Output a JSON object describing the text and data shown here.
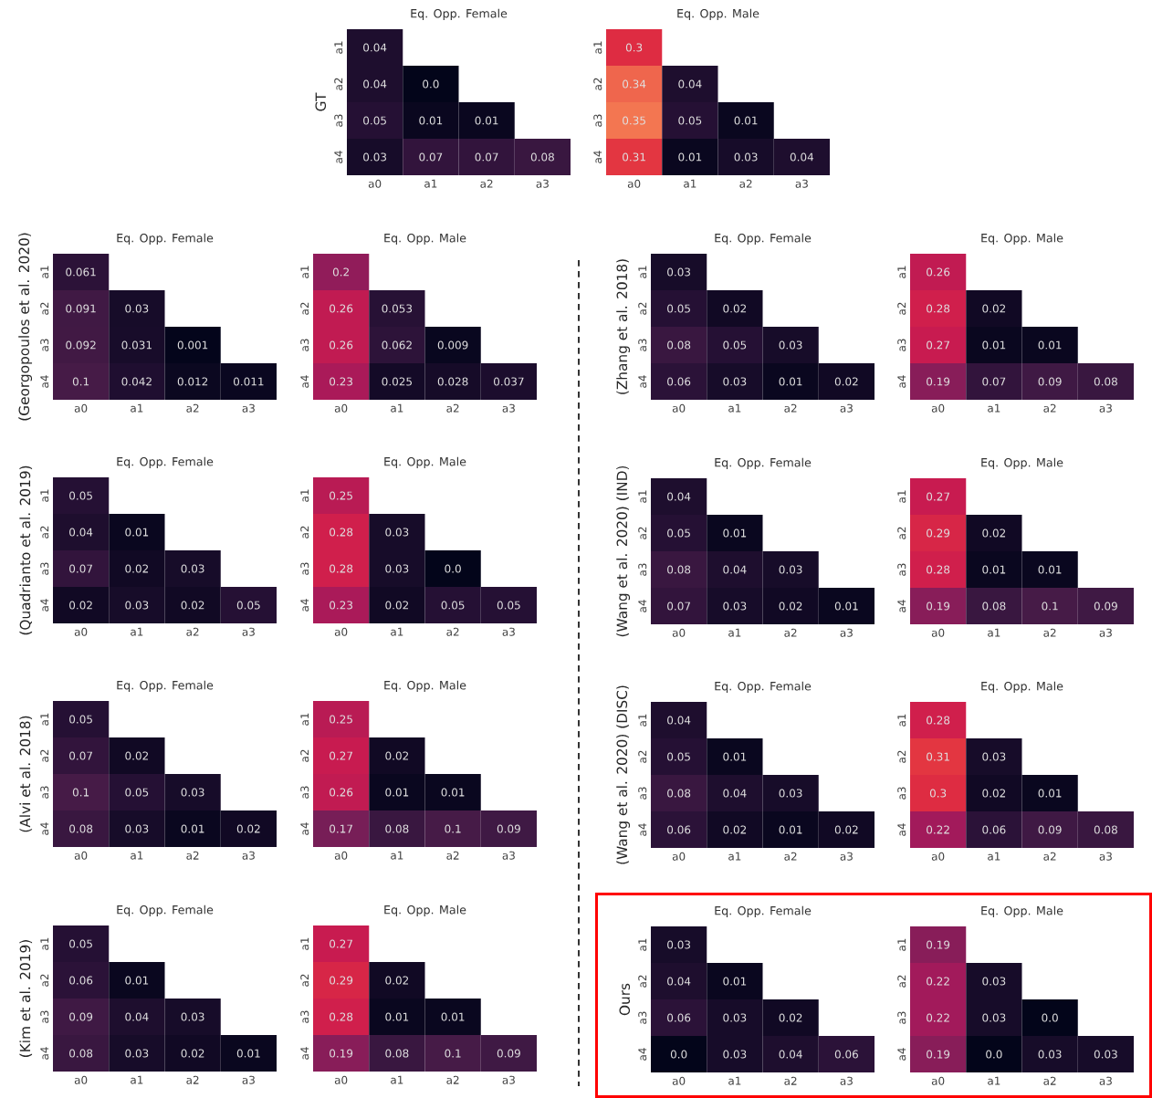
{
  "chart_data": [
    {
      "type": "heatmap",
      "title": "Eq. Opp. Female",
      "ylabel": "GT",
      "categories": [
        "a0",
        "a1",
        "a2",
        "a3"
      ],
      "y_categories": [
        "a1",
        "a2",
        "a3",
        "a4"
      ],
      "cells": [
        [
          0.04,
          null,
          null,
          null
        ],
        [
          0.04,
          0.0,
          null,
          null
        ],
        [
          0.05,
          0.01,
          0.01,
          null
        ],
        [
          0.03,
          0.07,
          0.07,
          0.08
        ]
      ],
      "cell_labels": [
        [
          "0.04",
          null,
          null,
          null
        ],
        [
          "0.04",
          "0.0",
          null,
          null
        ],
        [
          "0.05",
          "0.01",
          "0.01",
          null
        ],
        [
          "0.03",
          "0.07",
          "0.07",
          "0.08"
        ]
      ]
    },
    {
      "type": "heatmap",
      "title": "Eq. Opp. Male",
      "categories": [
        "a0",
        "a1",
        "a2",
        "a3"
      ],
      "y_categories": [
        "a1",
        "a2",
        "a3",
        "a4"
      ],
      "cells": [
        [
          0.3,
          null,
          null,
          null
        ],
        [
          0.34,
          0.04,
          null,
          null
        ],
        [
          0.35,
          0.05,
          0.01,
          null
        ],
        [
          0.31,
          0.01,
          0.03,
          0.04
        ]
      ],
      "cell_labels": [
        [
          "0.3",
          null,
          null,
          null
        ],
        [
          "0.34",
          "0.04",
          null,
          null
        ],
        [
          "0.35",
          "0.05",
          "0.01",
          null
        ],
        [
          "0.31",
          "0.01",
          "0.03",
          "0.04"
        ]
      ]
    },
    {
      "type": "heatmap",
      "title": "Eq. Opp. Female",
      "ylabel": "(Georgopoulos et al. 2020)",
      "categories": [
        "a0",
        "a1",
        "a2",
        "a3"
      ],
      "y_categories": [
        "a1",
        "a2",
        "a3",
        "a4"
      ],
      "cells": [
        [
          0.061,
          null,
          null,
          null
        ],
        [
          0.091,
          0.03,
          null,
          null
        ],
        [
          0.092,
          0.031,
          0.001,
          null
        ],
        [
          0.1,
          0.042,
          0.012,
          0.011
        ]
      ],
      "cell_labels": [
        [
          "0.061",
          null,
          null,
          null
        ],
        [
          "0.091",
          "0.03",
          null,
          null
        ],
        [
          "0.092",
          "0.031",
          "0.001",
          null
        ],
        [
          "0.1",
          "0.042",
          "0.012",
          "0.011"
        ]
      ]
    },
    {
      "type": "heatmap",
      "title": "Eq. Opp. Male",
      "categories": [
        "a0",
        "a1",
        "a2",
        "a3"
      ],
      "y_categories": [
        "a1",
        "a2",
        "a3",
        "a4"
      ],
      "cells": [
        [
          0.2,
          null,
          null,
          null
        ],
        [
          0.26,
          0.053,
          null,
          null
        ],
        [
          0.26,
          0.062,
          0.009,
          null
        ],
        [
          0.23,
          0.025,
          0.028,
          0.037
        ]
      ],
      "cell_labels": [
        [
          "0.2",
          null,
          null,
          null
        ],
        [
          "0.26",
          "0.053",
          null,
          null
        ],
        [
          "0.26",
          "0.062",
          "0.009",
          null
        ],
        [
          "0.23",
          "0.025",
          "0.028",
          "0.037"
        ]
      ]
    },
    {
      "type": "heatmap",
      "title": "Eq. Opp. Female",
      "ylabel": "(Zhang et al. 2018)",
      "categories": [
        "a0",
        "a1",
        "a2",
        "a3"
      ],
      "y_categories": [
        "a1",
        "a2",
        "a3",
        "a4"
      ],
      "cells": [
        [
          0.03,
          null,
          null,
          null
        ],
        [
          0.05,
          0.02,
          null,
          null
        ],
        [
          0.08,
          0.05,
          0.03,
          null
        ],
        [
          0.06,
          0.03,
          0.01,
          0.02
        ]
      ],
      "cell_labels": [
        [
          "0.03",
          null,
          null,
          null
        ],
        [
          "0.05",
          "0.02",
          null,
          null
        ],
        [
          "0.08",
          "0.05",
          "0.03",
          null
        ],
        [
          "0.06",
          "0.03",
          "0.01",
          "0.02"
        ]
      ]
    },
    {
      "type": "heatmap",
      "title": "Eq. Opp. Male",
      "categories": [
        "a0",
        "a1",
        "a2",
        "a3"
      ],
      "y_categories": [
        "a1",
        "a2",
        "a3",
        "a4"
      ],
      "cells": [
        [
          0.26,
          null,
          null,
          null
        ],
        [
          0.28,
          0.02,
          null,
          null
        ],
        [
          0.27,
          0.01,
          0.01,
          null
        ],
        [
          0.19,
          0.07,
          0.09,
          0.08
        ]
      ],
      "cell_labels": [
        [
          "0.26",
          null,
          null,
          null
        ],
        [
          "0.28",
          "0.02",
          null,
          null
        ],
        [
          "0.27",
          "0.01",
          "0.01",
          null
        ],
        [
          "0.19",
          "0.07",
          "0.09",
          "0.08"
        ]
      ]
    },
    {
      "type": "heatmap",
      "title": "Eq. Opp. Female",
      "ylabel": "(Quadrianto et al. 2019)",
      "categories": [
        "a0",
        "a1",
        "a2",
        "a3"
      ],
      "y_categories": [
        "a1",
        "a2",
        "a3",
        "a4"
      ],
      "cells": [
        [
          0.05,
          null,
          null,
          null
        ],
        [
          0.04,
          0.01,
          null,
          null
        ],
        [
          0.07,
          0.02,
          0.03,
          null
        ],
        [
          0.02,
          0.03,
          0.02,
          0.05
        ]
      ],
      "cell_labels": [
        [
          "0.05",
          null,
          null,
          null
        ],
        [
          "0.04",
          "0.01",
          null,
          null
        ],
        [
          "0.07",
          "0.02",
          "0.03",
          null
        ],
        [
          "0.02",
          "0.03",
          "0.02",
          "0.05"
        ]
      ]
    },
    {
      "type": "heatmap",
      "title": "Eq. Opp. Male",
      "categories": [
        "a0",
        "a1",
        "a2",
        "a3"
      ],
      "y_categories": [
        "a1",
        "a2",
        "a3",
        "a4"
      ],
      "cells": [
        [
          0.25,
          null,
          null,
          null
        ],
        [
          0.28,
          0.03,
          null,
          null
        ],
        [
          0.28,
          0.03,
          0.0,
          null
        ],
        [
          0.23,
          0.02,
          0.05,
          0.05
        ]
      ],
      "cell_labels": [
        [
          "0.25",
          null,
          null,
          null
        ],
        [
          "0.28",
          "0.03",
          null,
          null
        ],
        [
          "0.28",
          "0.03",
          "0.0",
          null
        ],
        [
          "0.23",
          "0.02",
          "0.05",
          "0.05"
        ]
      ]
    },
    {
      "type": "heatmap",
      "title": "Eq. Opp. Female",
      "ylabel": "(Wang et al. 2020) (IND)",
      "categories": [
        "a0",
        "a1",
        "a2",
        "a3"
      ],
      "y_categories": [
        "a1",
        "a2",
        "a3",
        "a4"
      ],
      "cells": [
        [
          0.04,
          null,
          null,
          null
        ],
        [
          0.05,
          0.01,
          null,
          null
        ],
        [
          0.08,
          0.04,
          0.03,
          null
        ],
        [
          0.07,
          0.03,
          0.02,
          0.01
        ]
      ],
      "cell_labels": [
        [
          "0.04",
          null,
          null,
          null
        ],
        [
          "0.05",
          "0.01",
          null,
          null
        ],
        [
          "0.08",
          "0.04",
          "0.03",
          null
        ],
        [
          "0.07",
          "0.03",
          "0.02",
          "0.01"
        ]
      ]
    },
    {
      "type": "heatmap",
      "title": "Eq. Opp. Male",
      "categories": [
        "a0",
        "a1",
        "a2",
        "a3"
      ],
      "y_categories": [
        "a1",
        "a2",
        "a3",
        "a4"
      ],
      "cells": [
        [
          0.27,
          null,
          null,
          null
        ],
        [
          0.29,
          0.02,
          null,
          null
        ],
        [
          0.28,
          0.01,
          0.01,
          null
        ],
        [
          0.19,
          0.08,
          0.1,
          0.09
        ]
      ],
      "cell_labels": [
        [
          "0.27",
          null,
          null,
          null
        ],
        [
          "0.29",
          "0.02",
          null,
          null
        ],
        [
          "0.28",
          "0.01",
          "0.01",
          null
        ],
        [
          "0.19",
          "0.08",
          "0.1",
          "0.09"
        ]
      ]
    },
    {
      "type": "heatmap",
      "title": "Eq. Opp. Female",
      "ylabel": "(Alvi et al. 2018)",
      "categories": [
        "a0",
        "a1",
        "a2",
        "a3"
      ],
      "y_categories": [
        "a1",
        "a2",
        "a3",
        "a4"
      ],
      "cells": [
        [
          0.05,
          null,
          null,
          null
        ],
        [
          0.07,
          0.02,
          null,
          null
        ],
        [
          0.1,
          0.05,
          0.03,
          null
        ],
        [
          0.08,
          0.03,
          0.01,
          0.02
        ]
      ],
      "cell_labels": [
        [
          "0.05",
          null,
          null,
          null
        ],
        [
          "0.07",
          "0.02",
          null,
          null
        ],
        [
          "0.1",
          "0.05",
          "0.03",
          null
        ],
        [
          "0.08",
          "0.03",
          "0.01",
          "0.02"
        ]
      ]
    },
    {
      "type": "heatmap",
      "title": "Eq. Opp. Male",
      "categories": [
        "a0",
        "a1",
        "a2",
        "a3"
      ],
      "y_categories": [
        "a1",
        "a2",
        "a3",
        "a4"
      ],
      "cells": [
        [
          0.25,
          null,
          null,
          null
        ],
        [
          0.27,
          0.02,
          null,
          null
        ],
        [
          0.26,
          0.01,
          0.01,
          null
        ],
        [
          0.17,
          0.08,
          0.1,
          0.09
        ]
      ],
      "cell_labels": [
        [
          "0.25",
          null,
          null,
          null
        ],
        [
          "0.27",
          "0.02",
          null,
          null
        ],
        [
          "0.26",
          "0.01",
          "0.01",
          null
        ],
        [
          "0.17",
          "0.08",
          "0.1",
          "0.09"
        ]
      ]
    },
    {
      "type": "heatmap",
      "title": "Eq. Opp. Female",
      "ylabel": "(Wang et al. 2020) (DISC)",
      "categories": [
        "a0",
        "a1",
        "a2",
        "a3"
      ],
      "y_categories": [
        "a1",
        "a2",
        "a3",
        "a4"
      ],
      "cells": [
        [
          0.04,
          null,
          null,
          null
        ],
        [
          0.05,
          0.01,
          null,
          null
        ],
        [
          0.08,
          0.04,
          0.03,
          null
        ],
        [
          0.06,
          0.02,
          0.01,
          0.02
        ]
      ],
      "cell_labels": [
        [
          "0.04",
          null,
          null,
          null
        ],
        [
          "0.05",
          "0.01",
          null,
          null
        ],
        [
          "0.08",
          "0.04",
          "0.03",
          null
        ],
        [
          "0.06",
          "0.02",
          "0.01",
          "0.02"
        ]
      ]
    },
    {
      "type": "heatmap",
      "title": "Eq. Opp. Male",
      "categories": [
        "a0",
        "a1",
        "a2",
        "a3"
      ],
      "y_categories": [
        "a1",
        "a2",
        "a3",
        "a4"
      ],
      "cells": [
        [
          0.28,
          null,
          null,
          null
        ],
        [
          0.31,
          0.03,
          null,
          null
        ],
        [
          0.3,
          0.02,
          0.01,
          null
        ],
        [
          0.22,
          0.06,
          0.09,
          0.08
        ]
      ],
      "cell_labels": [
        [
          "0.28",
          null,
          null,
          null
        ],
        [
          "0.31",
          "0.03",
          null,
          null
        ],
        [
          "0.3",
          "0.02",
          "0.01",
          null
        ],
        [
          "0.22",
          "0.06",
          "0.09",
          "0.08"
        ]
      ]
    },
    {
      "type": "heatmap",
      "title": "Eq. Opp. Female",
      "ylabel": "(Kim et al. 2019)",
      "categories": [
        "a0",
        "a1",
        "a2",
        "a3"
      ],
      "y_categories": [
        "a1",
        "a2",
        "a3",
        "a4"
      ],
      "cells": [
        [
          0.05,
          null,
          null,
          null
        ],
        [
          0.06,
          0.01,
          null,
          null
        ],
        [
          0.09,
          0.04,
          0.03,
          null
        ],
        [
          0.08,
          0.03,
          0.02,
          0.01
        ]
      ],
      "cell_labels": [
        [
          "0.05",
          null,
          null,
          null
        ],
        [
          "0.06",
          "0.01",
          null,
          null
        ],
        [
          "0.09",
          "0.04",
          "0.03",
          null
        ],
        [
          "0.08",
          "0.03",
          "0.02",
          "0.01"
        ]
      ]
    },
    {
      "type": "heatmap",
      "title": "Eq. Opp. Male",
      "categories": [
        "a0",
        "a1",
        "a2",
        "a3"
      ],
      "y_categories": [
        "a1",
        "a2",
        "a3",
        "a4"
      ],
      "cells": [
        [
          0.27,
          null,
          null,
          null
        ],
        [
          0.29,
          0.02,
          null,
          null
        ],
        [
          0.28,
          0.01,
          0.01,
          null
        ],
        [
          0.19,
          0.08,
          0.1,
          0.09
        ]
      ],
      "cell_labels": [
        [
          "0.27",
          null,
          null,
          null
        ],
        [
          "0.29",
          "0.02",
          null,
          null
        ],
        [
          "0.28",
          "0.01",
          "0.01",
          null
        ],
        [
          "0.19",
          "0.08",
          "0.1",
          "0.09"
        ]
      ]
    },
    {
      "type": "heatmap",
      "title": "Eq. Opp. Female",
      "ylabel": "Ours",
      "categories": [
        "a0",
        "a1",
        "a2",
        "a3"
      ],
      "y_categories": [
        "a1",
        "a2",
        "a3",
        "a4"
      ],
      "cells": [
        [
          0.03,
          null,
          null,
          null
        ],
        [
          0.04,
          0.01,
          null,
          null
        ],
        [
          0.06,
          0.03,
          0.02,
          null
        ],
        [
          0.0,
          0.03,
          0.04,
          0.06
        ]
      ],
      "cell_labels": [
        [
          "0.03",
          null,
          null,
          null
        ],
        [
          "0.04",
          "0.01",
          null,
          null
        ],
        [
          "0.06",
          "0.03",
          "0.02",
          null
        ],
        [
          "0.0",
          "0.03",
          "0.04",
          "0.06"
        ]
      ]
    },
    {
      "type": "heatmap",
      "title": "Eq. Opp. Male",
      "categories": [
        "a0",
        "a1",
        "a2",
        "a3"
      ],
      "y_categories": [
        "a1",
        "a2",
        "a3",
        "a4"
      ],
      "cells": [
        [
          0.19,
          null,
          null,
          null
        ],
        [
          0.22,
          0.03,
          null,
          null
        ],
        [
          0.22,
          0.03,
          0.0,
          null
        ],
        [
          0.19,
          0.0,
          0.03,
          0.03
        ]
      ],
      "cell_labels": [
        [
          "0.19",
          null,
          null,
          null
        ],
        [
          "0.22",
          "0.03",
          null,
          null
        ],
        [
          "0.22",
          "0.03",
          "0.0",
          null
        ],
        [
          "0.19",
          "0.0",
          "0.03",
          "0.03"
        ]
      ]
    }
  ]
}
